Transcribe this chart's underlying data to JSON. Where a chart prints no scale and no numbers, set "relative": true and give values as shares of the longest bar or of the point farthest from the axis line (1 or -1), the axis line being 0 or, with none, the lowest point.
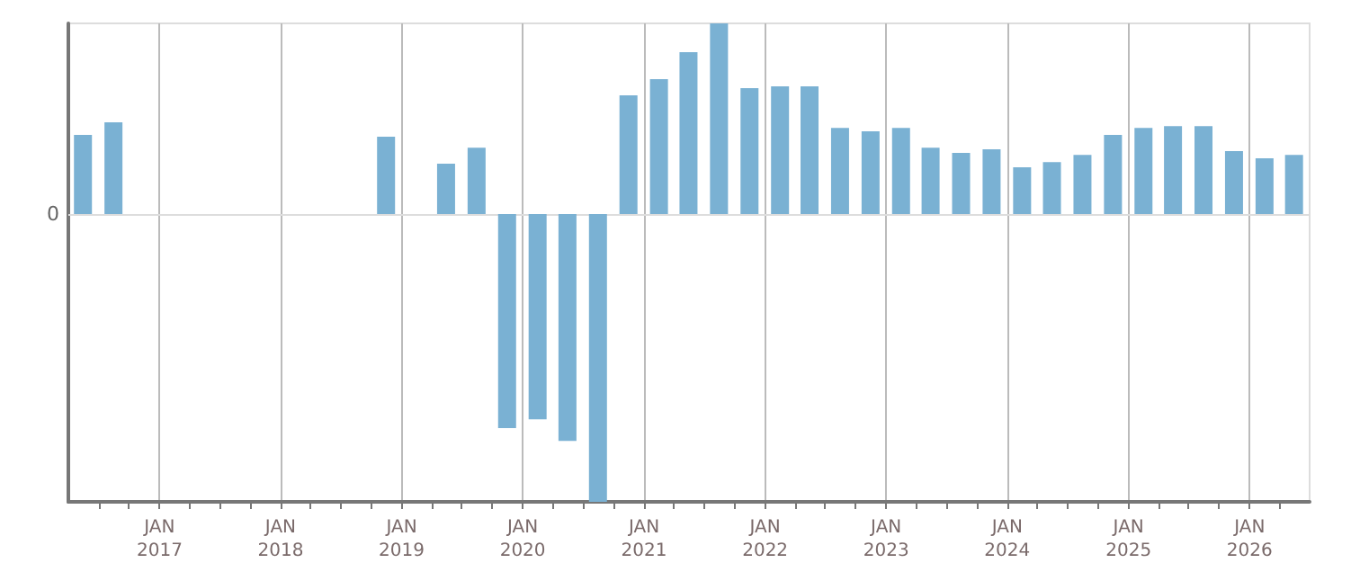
{
  "chart_data": {
    "type": "bar",
    "relative": true,
    "x": [
      "2016-05-15",
      "2016-08-15",
      "2018-11-15",
      "2019-05-15",
      "2019-08-15",
      "2019-11-15",
      "2020-02-15",
      "2020-05-15",
      "2020-08-15",
      "2020-11-15",
      "2021-02-15",
      "2021-05-15",
      "2021-08-15",
      "2021-11-15",
      "2022-02-15",
      "2022-05-15",
      "2022-08-15",
      "2022-11-15",
      "2023-02-15",
      "2023-05-15",
      "2023-08-15",
      "2023-11-15",
      "2024-02-15",
      "2024-05-15",
      "2024-08-15",
      "2024-11-15",
      "2025-02-15",
      "2025-05-15",
      "2025-08-15",
      "2025-11-15",
      "2026-02-15",
      "2026-05-15"
    ],
    "values": [
      0.275,
      0.319,
      0.269,
      0.175,
      0.231,
      -0.744,
      -0.713,
      -0.788,
      -1,
      0.413,
      0.469,
      0.563,
      0.663,
      0.438,
      0.444,
      0.444,
      0.3,
      0.288,
      0.3,
      0.231,
      0.213,
      0.225,
      0.163,
      0.181,
      0.206,
      0.275,
      0.3,
      0.306,
      0.306,
      0.219,
      0.194,
      0.206
    ],
    "color": "#7ab1d3",
    "xlim": [
      "2016-04-01",
      "2026-07-01"
    ],
    "xticks": [
      {
        "value": "2016-07-01",
        "label": null
      },
      {
        "value": "2016-10-01",
        "label": null
      },
      {
        "value": "2017-01-01",
        "label": "JAN\n2017"
      },
      {
        "value": "2017-04-01",
        "label": null
      },
      {
        "value": "2017-07-01",
        "label": null
      },
      {
        "value": "2017-10-01",
        "label": null
      },
      {
        "value": "2018-01-01",
        "label": "JAN\n2018"
      },
      {
        "value": "2018-04-01",
        "label": null
      },
      {
        "value": "2018-07-01",
        "label": null
      },
      {
        "value": "2018-10-01",
        "label": null
      },
      {
        "value": "2019-01-01",
        "label": "JAN\n2019"
      },
      {
        "value": "2019-04-01",
        "label": null
      },
      {
        "value": "2019-07-01",
        "label": null
      },
      {
        "value": "2019-10-01",
        "label": null
      },
      {
        "value": "2020-01-01",
        "label": "JAN\n2020"
      },
      {
        "value": "2020-04-01",
        "label": null
      },
      {
        "value": "2020-07-01",
        "label": null
      },
      {
        "value": "2020-10-01",
        "label": null
      },
      {
        "value": "2021-01-01",
        "label": "JAN\n2021"
      },
      {
        "value": "2021-04-01",
        "label": null
      },
      {
        "value": "2021-07-01",
        "label": null
      },
      {
        "value": "2021-10-01",
        "label": null
      },
      {
        "value": "2022-01-01",
        "label": "JAN\n2022"
      },
      {
        "value": "2022-04-01",
        "label": null
      },
      {
        "value": "2022-07-01",
        "label": null
      },
      {
        "value": "2022-10-01",
        "label": null
      },
      {
        "value": "2023-01-01",
        "label": "JAN\n2023"
      },
      {
        "value": "2023-04-01",
        "label": null
      },
      {
        "value": "2023-07-01",
        "label": null
      },
      {
        "value": "2023-10-01",
        "label": null
      },
      {
        "value": "2024-01-01",
        "label": "JAN\n2024"
      },
      {
        "value": "2024-04-01",
        "label": null
      },
      {
        "value": "2024-07-01",
        "label": null
      },
      {
        "value": "2024-10-01",
        "label": null
      },
      {
        "value": "2025-01-01",
        "label": "JAN\n2025"
      },
      {
        "value": "2025-04-01",
        "label": null
      },
      {
        "value": "2025-07-01",
        "label": null
      },
      {
        "value": "2025-10-01",
        "label": null
      },
      {
        "value": "2026-01-01",
        "label": "JAN\n2026"
      },
      {
        "value": "2026-04-01",
        "label": null
      }
    ],
    "ref_lines": [
      {
        "axis": "y",
        "value": 0,
        "label": "0",
        "color": "#dddddd"
      }
    ],
    "grid": "x"
  }
}
